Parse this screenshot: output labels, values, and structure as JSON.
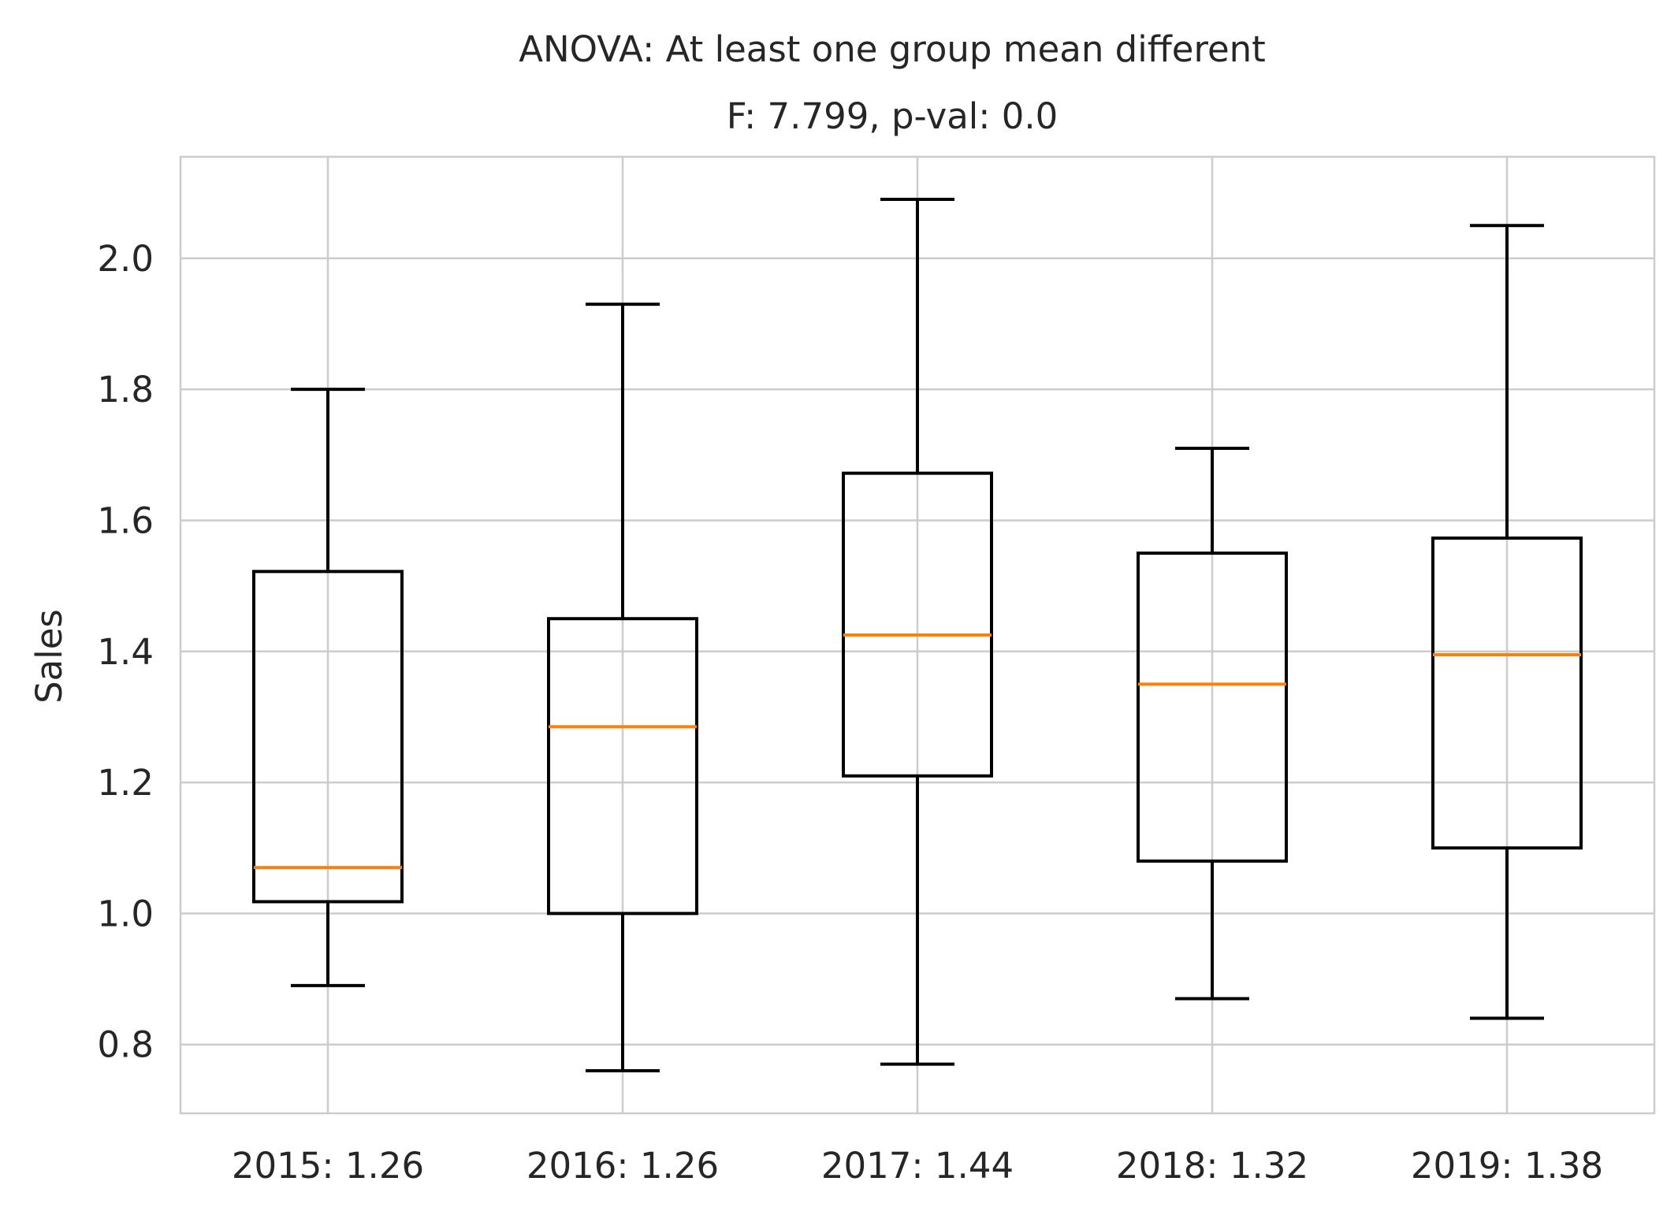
{
  "chart_data": {
    "type": "box",
    "title": "ANOVA: At least one group mean different",
    "subtitle": "F: 7.799, p-val: 0.0",
    "xlabel": "",
    "ylabel": "Sales",
    "ylim": [
      0.695,
      2.155
    ],
    "yticks": [
      0.8,
      1.0,
      1.2,
      1.4,
      1.6,
      1.8,
      2.0
    ],
    "ytick_labels": [
      "0.8",
      "1.0",
      "1.2",
      "1.4",
      "1.6",
      "1.8",
      "2.0"
    ],
    "grid": true,
    "categories": [
      "2015: 1.26",
      "2016: 1.26",
      "2017: 1.44",
      "2018: 1.32",
      "2019: 1.38"
    ],
    "boxes": [
      {
        "category": "2015: 1.26",
        "whisker_low": 0.89,
        "q1": 1.018,
        "median": 1.07,
        "q3": 1.522,
        "whisker_high": 1.8
      },
      {
        "category": "2016: 1.26",
        "whisker_low": 0.76,
        "q1": 1.0,
        "median": 1.285,
        "q3": 1.45,
        "whisker_high": 1.93
      },
      {
        "category": "2017: 1.44",
        "whisker_low": 0.77,
        "q1": 1.21,
        "median": 1.425,
        "q3": 1.672,
        "whisker_high": 2.09
      },
      {
        "category": "2018: 1.32",
        "whisker_low": 0.87,
        "q1": 1.08,
        "median": 1.35,
        "q3": 1.55,
        "whisker_high": 1.71
      },
      {
        "category": "2019: 1.38",
        "whisker_low": 0.84,
        "q1": 1.1,
        "median": 1.395,
        "q3": 1.573,
        "whisker_high": 2.05
      }
    ],
    "colors": {
      "box": "#000000",
      "median": "#ff7f0e",
      "grid": "#cccccc"
    }
  }
}
